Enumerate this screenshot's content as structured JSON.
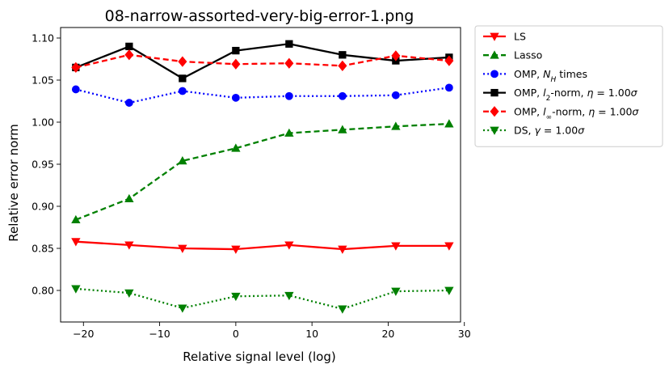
{
  "chart_data": {
    "type": "line",
    "title": "08-narrow-assorted-very-big-error-1.png",
    "xlabel": "Relative signal level (log)",
    "ylabel": "Relative error norm",
    "xlim": [
      -23,
      29.5
    ],
    "ylim": [
      0.7625,
      1.1125
    ],
    "xticks": [
      -20,
      -10,
      0,
      10,
      20,
      30
    ],
    "xtick_labels": [
      "−20",
      "−10",
      "0",
      "10",
      "20",
      "30"
    ],
    "yticks": [
      0.8,
      0.85,
      0.9,
      0.95,
      1.0,
      1.05,
      1.1
    ],
    "ytick_labels": [
      "0.80",
      "0.85",
      "0.90",
      "0.95",
      "1.00",
      "1.05",
      "1.10"
    ],
    "grid": false,
    "legend_position": "outside upper right",
    "x": [
      -21,
      -14,
      -7,
      0,
      7,
      14,
      21,
      28
    ],
    "series": [
      {
        "name": "LS",
        "color": "#ff0000",
        "linestyle": "solid",
        "marker": "triangle-down",
        "values": [
          0.858,
          0.854,
          0.85,
          0.849,
          0.854,
          0.849,
          0.853,
          0.853
        ]
      },
      {
        "name": "Lasso",
        "color": "#008000",
        "linestyle": "dashed",
        "marker": "triangle-up",
        "values": [
          0.884,
          0.909,
          0.954,
          0.969,
          0.987,
          0.991,
          0.995,
          0.998
        ]
      },
      {
        "name": "OMP, N_H times",
        "color": "#0000ff",
        "linestyle": "dotted",
        "marker": "circle",
        "values": [
          1.039,
          1.023,
          1.037,
          1.029,
          1.031,
          1.031,
          1.032,
          1.041
        ]
      },
      {
        "name": "OMP, l2-norm, η = 1.00σ",
        "color": "#000000",
        "linestyle": "solid",
        "marker": "square",
        "values": [
          1.065,
          1.09,
          1.052,
          1.085,
          1.093,
          1.08,
          1.073,
          1.077
        ]
      },
      {
        "name": "OMP, l∞-norm, η = 1.00σ",
        "color": "#ff0000",
        "linestyle": "dashed",
        "marker": "diamond",
        "values": [
          1.065,
          1.08,
          1.072,
          1.069,
          1.07,
          1.067,
          1.079,
          1.073
        ]
      },
      {
        "name": "DS, γ = 1.00σ",
        "color": "#008000",
        "linestyle": "dotted",
        "marker": "triangle-down",
        "values": [
          0.802,
          0.797,
          0.779,
          0.793,
          0.794,
          0.778,
          0.799,
          0.8
        ]
      }
    ],
    "legend": [
      {
        "parts": [
          {
            "t": "LS"
          }
        ]
      },
      {
        "parts": [
          {
            "t": "Lasso"
          }
        ]
      },
      {
        "parts": [
          {
            "t": "OMP, "
          },
          {
            "t": "N",
            "i": true
          },
          {
            "t": "H",
            "i": true,
            "sub": true
          },
          {
            "t": " times"
          }
        ]
      },
      {
        "parts": [
          {
            "t": "OMP, "
          },
          {
            "t": "l",
            "i": true
          },
          {
            "t": "2",
            "sub": true
          },
          {
            "t": "-norm, "
          },
          {
            "t": "η",
            "i": true
          },
          {
            "t": " = 1.00"
          },
          {
            "t": "σ",
            "i": true
          }
        ]
      },
      {
        "parts": [
          {
            "t": "OMP, "
          },
          {
            "t": "l",
            "i": true
          },
          {
            "t": "∞",
            "sub": true
          },
          {
            "t": "-norm, "
          },
          {
            "t": "η",
            "i": true
          },
          {
            "t": " = 1.00"
          },
          {
            "t": "σ",
            "i": true
          }
        ]
      },
      {
        "parts": [
          {
            "t": "DS, "
          },
          {
            "t": "γ",
            "i": true
          },
          {
            "t": " = 1.00"
          },
          {
            "t": "σ",
            "i": true
          }
        ]
      }
    ]
  }
}
